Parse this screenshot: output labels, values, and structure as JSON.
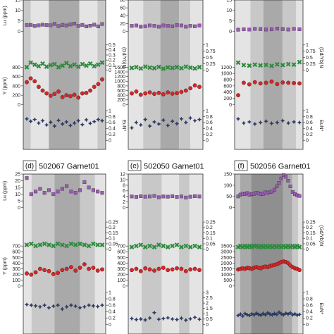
{
  "colors": {
    "lu": "#9b59b6",
    "gd_yb": "#2e8b3e",
    "y": "#d62728",
    "eu": "#2c3e7a",
    "band_light": "#e4e4e4",
    "band_mid": "#c8c8c8",
    "band_dark": "#a9a9a9",
    "band_darkest": "#8f8f8f"
  },
  "chart_data": [
    {
      "type": "scatter",
      "label": "",
      "title": "",
      "bands": [
        "mid",
        "light",
        "dark",
        "light",
        "mid"
      ],
      "band_edges": [
        0.0,
        0.09,
        0.31,
        0.68,
        0.9,
        1.0
      ],
      "tracks": [
        {
          "key": "lu",
          "side": "left",
          "label": "Lu (ppm)",
          "ylim": [
            0,
            15
          ],
          "ticks": [
            "0",
            "5",
            "10",
            "15"
          ],
          "values": [
            3.0,
            3.1,
            2.6,
            2.9,
            3.2,
            3.0,
            2.9,
            3.6,
            2.5,
            3.1,
            2.8,
            3.3,
            3.7,
            2.6,
            3.1,
            2.4,
            2.7,
            3.2,
            2.4,
            3.5
          ]
        },
        {
          "key": "gd_yb",
          "side": "right",
          "label": "(Gd/Yb)N",
          "ylim": [
            0,
            0.5
          ],
          "ticks": [
            "0",
            "0.1",
            "0.2",
            "0.3",
            "0.4",
            "0.5"
          ],
          "values": [
            0.06,
            0.15,
            0.11,
            0.08,
            0.13,
            0.07,
            0.1,
            0.12,
            0.06,
            0.09,
            0.14,
            0.08,
            0.11,
            0.07,
            0.12,
            0.09,
            0.13,
            0.08,
            0.11,
            0.15
          ]
        },
        {
          "key": "y",
          "side": "left",
          "label": "Y (ppm)",
          "ylim": [
            0,
            800
          ],
          "ticks": [
            "0",
            "200",
            "400",
            "600",
            "800"
          ],
          "values": [
            480,
            560,
            500,
            380,
            300,
            240,
            190,
            230,
            280,
            160,
            200,
            180,
            210,
            150,
            240,
            250,
            300,
            380,
            440,
            540
          ]
        },
        {
          "key": "eu",
          "side": "right",
          "label": "EuN*",
          "ylim": [
            0,
            1
          ],
          "ticks": [
            "0",
            "0.2",
            "0.4",
            "0.6",
            "0.8",
            "1"
          ],
          "values": [
            0.72,
            0.64,
            0.7,
            0.58,
            0.66,
            0.52,
            0.61,
            0.48,
            0.67,
            0.55,
            0.62,
            0.5,
            0.58,
            0.66,
            0.53,
            0.69,
            0.57,
            0.63,
            0.7,
            0.66
          ]
        }
      ]
    },
    {
      "type": "scatter",
      "label": "",
      "title": "",
      "bands": [
        "light",
        "mid",
        "dark",
        "mid",
        "light"
      ],
      "band_edges": [
        0.0,
        0.2,
        0.43,
        0.68,
        0.83,
        1.0
      ],
      "tracks": [
        {
          "key": "lu",
          "side": "left",
          "label": "",
          "ylim": [
            0,
            80
          ],
          "ticks": [
            "0",
            "20",
            "40",
            "60",
            "80"
          ],
          "values": [
            14,
            15,
            12,
            13,
            15,
            14,
            12,
            15,
            14,
            13,
            16,
            15,
            12,
            14,
            13,
            15
          ]
        },
        {
          "key": "gd_yb",
          "side": "right",
          "label": "",
          "ylim": [
            0,
            1
          ],
          "ticks": [
            "0",
            "0.25",
            "0.5",
            "0.75",
            "1"
          ],
          "values": [
            0.09,
            0.12,
            0.07,
            0.14,
            0.1,
            0.08,
            0.13,
            0.06,
            0.11,
            0.09,
            0.12,
            0.08,
            0.14,
            0.1,
            0.07,
            0.12
          ]
        },
        {
          "key": "y",
          "side": "left",
          "label": "",
          "ylim": [
            0,
            1600
          ],
          "ticks": [
            "0",
            "200",
            "400",
            "600",
            "800",
            "1000",
            "1200",
            "1400",
            "1600"
          ],
          "values": [
            480,
            560,
            420,
            480,
            520,
            460,
            500,
            440,
            520,
            470,
            490,
            540,
            600,
            700,
            820,
            760
          ]
        },
        {
          "key": "eu",
          "side": "right",
          "label": "",
          "ylim": [
            0,
            1
          ],
          "ticks": [
            "0",
            "0.2",
            "0.4",
            "0.6",
            "0.8",
            "1"
          ],
          "values": [
            0.42,
            0.6,
            0.52,
            0.7,
            0.48,
            0.62,
            0.55,
            0.68,
            0.5,
            0.64,
            0.56,
            0.72,
            0.6,
            0.75,
            0.66,
            0.7
          ]
        }
      ]
    },
    {
      "type": "scatter",
      "label": "",
      "title": "",
      "bands": [
        "light",
        "mid",
        "dark",
        "mid",
        "light"
      ],
      "band_edges": [
        0.0,
        0.23,
        0.42,
        0.7,
        0.9,
        1.0
      ],
      "tracks": [
        {
          "key": "lu",
          "side": "left",
          "label": "",
          "ylim": [
            0,
            15
          ],
          "ticks": [
            "0",
            "5",
            "10",
            "15"
          ],
          "values": [
            0.8,
            1.0,
            0.9,
            1.2,
            1.1,
            0.9,
            1.0,
            1.3,
            1.1,
            0.9,
            1.2,
            1.0
          ]
        },
        {
          "key": "gd_yb",
          "side": "right",
          "label": "(Gd/Yb)N",
          "ylim": [
            0,
            1
          ],
          "ticks": [
            "0",
            "0.25",
            "0.5",
            "0.75",
            "1"
          ],
          "values": [
            0.3,
            0.2,
            0.18,
            0.22,
            0.19,
            0.21,
            0.17,
            0.23,
            0.2,
            0.24,
            0.22,
            0.32
          ]
        },
        {
          "key": "y",
          "side": "left",
          "label": "",
          "ylim": [
            0,
            1200
          ],
          "ticks": [
            "0",
            "200",
            "400",
            "600",
            "800",
            "1000",
            "1200"
          ],
          "values": [
            300,
            700,
            650,
            720,
            680,
            700,
            740,
            660,
            710,
            700,
            690,
            680
          ]
        },
        {
          "key": "eu",
          "side": "right",
          "label": "EuN*",
          "ylim": [
            0,
            1
          ],
          "ticks": [
            "0",
            "0.2",
            "0.4",
            "0.6",
            "0.8",
            "1"
          ],
          "values": [
            0.72,
            0.58,
            0.62,
            0.55,
            0.6,
            0.64,
            0.57,
            0.6,
            0.66,
            0.58,
            0.62,
            0.6
          ]
        }
      ]
    },
    {
      "type": "scatter",
      "label": "(d)",
      "title": "502067 Garnet01",
      "bands": [
        "light",
        "mid",
        "dark",
        "mid",
        "light"
      ],
      "band_edges": [
        0.0,
        0.1,
        0.38,
        0.69,
        0.87,
        1.0
      ],
      "tracks": [
        {
          "key": "lu",
          "side": "left",
          "label": "Lu (ppm)",
          "ylim": [
            0,
            25
          ],
          "ticks": [
            "0",
            "5",
            "10",
            "15",
            "20",
            "25"
          ],
          "values": [
            22,
            10,
            12,
            14,
            11,
            13,
            10,
            12,
            14,
            16,
            12,
            11,
            13,
            19,
            15,
            13,
            12,
            11
          ]
        },
        {
          "key": "gd_yb",
          "side": "right",
          "label": "",
          "ylim": [
            0,
            0.25
          ],
          "ticks": [
            "0",
            "0.05",
            "0.1",
            "0.15",
            "0.2",
            "0.25"
          ],
          "values": [
            0.04,
            0.05,
            0.03,
            0.04,
            0.05,
            0.04,
            0.03,
            0.05,
            0.04,
            0.03,
            0.05,
            0.04,
            0.05,
            0.04,
            0.03,
            0.05,
            0.04,
            0.04
          ]
        },
        {
          "key": "y",
          "side": "left",
          "label": "Y (ppm)",
          "ylim": [
            0,
            700
          ],
          "ticks": [
            "0",
            "100",
            "200",
            "300",
            "400",
            "500",
            "600",
            "700"
          ],
          "values": [
            220,
            200,
            240,
            300,
            280,
            260,
            210,
            230,
            280,
            300,
            330,
            270,
            320,
            380,
            300,
            320,
            270,
            290
          ]
        },
        {
          "key": "eu",
          "side": "right",
          "label": "",
          "ylim": [
            0,
            1
          ],
          "ticks": [
            "0",
            "0.2",
            "0.4",
            "0.6",
            "0.8",
            "1"
          ],
          "values": [
            0.62,
            0.6,
            0.58,
            0.55,
            0.6,
            0.52,
            0.57,
            0.6,
            0.48,
            0.55,
            0.6,
            0.57,
            0.52,
            0.55,
            0.6,
            0.58,
            0.56,
            0.6
          ]
        }
      ]
    },
    {
      "type": "scatter",
      "label": "(e)",
      "title": "502050 Garnet01",
      "bands": [
        "light",
        "mid",
        "light",
        "mid",
        "light"
      ],
      "band_edges": [
        0.0,
        0.18,
        0.45,
        0.68,
        0.82,
        1.0
      ],
      "tracks": [
        {
          "key": "lu",
          "side": "left",
          "label": "",
          "ylim": [
            0,
            12
          ],
          "ticks": [
            "0",
            "2",
            "4",
            "6",
            "8",
            "10",
            "12"
          ],
          "values": [
            4.0,
            3.8,
            4.1,
            3.9,
            4.0,
            4.2,
            3.7,
            4.0,
            3.9,
            4.1,
            3.8,
            4.0,
            3.6,
            3.9,
            4.1,
            4.0
          ]
        },
        {
          "key": "gd_yb",
          "side": "right",
          "label": "",
          "ylim": [
            0,
            0.25
          ],
          "ticks": [
            "0",
            "0.05",
            "0.1",
            "0.15",
            "0.2",
            "0.25"
          ],
          "values": [
            0.02,
            0.03,
            0.04,
            0.02,
            0.03,
            0.02,
            0.04,
            0.03,
            0.02,
            0.03,
            0.04,
            0.02,
            0.03,
            0.02,
            0.03,
            0.02
          ]
        },
        {
          "key": "y",
          "side": "left",
          "label": "",
          "ylim": [
            0,
            700
          ],
          "ticks": [
            "0",
            "100",
            "200",
            "300",
            "400",
            "500",
            "600",
            "700"
          ],
          "values": [
            280,
            300,
            260,
            310,
            290,
            270,
            300,
            320,
            280,
            290,
            310,
            300,
            260,
            290,
            300,
            280
          ]
        },
        {
          "key": "eu",
          "side": "right",
          "label": "",
          "ylim": [
            0,
            3
          ],
          "ticks": [
            "0",
            "0.5",
            "1",
            "1.5",
            "2",
            "2.5",
            "3"
          ],
          "values": [
            0.55,
            0.45,
            0.5,
            0.42,
            0.6,
            1.1,
            0.48,
            0.55,
            0.62,
            0.5,
            0.45,
            0.58,
            0.4,
            0.52,
            0.66,
            0.48
          ]
        }
      ]
    },
    {
      "type": "scatter",
      "label": "(f)",
      "title": "502056 Garnet01",
      "bands": [
        "mid",
        "dark",
        "darkest",
        "dark",
        "mid",
        "light"
      ],
      "band_edges": [
        0.0,
        0.08,
        0.24,
        0.71,
        0.84,
        0.93,
        1.0
      ],
      "tracks": [
        {
          "key": "lu",
          "side": "left",
          "label": "",
          "ylim": [
            0,
            150
          ],
          "ticks": [
            "0",
            "50",
            "100",
            "150"
          ],
          "values": [
            50,
            58,
            62,
            60,
            65,
            58,
            60,
            62,
            66,
            64,
            60,
            62,
            68,
            66,
            70,
            72,
            80,
            95,
            110,
            130,
            145,
            138,
            120,
            95,
            70,
            60,
            55,
            52
          ]
        },
        {
          "key": "gd_yb",
          "side": "right",
          "label": "(Gd/Yb)N",
          "ylim": [
            0,
            0.25
          ],
          "ticks": [
            "0",
            "0.05",
            "0.1",
            "0.15",
            "0.2",
            "0.25"
          ],
          "values": [
            0.02,
            0.03,
            0.02,
            0.03,
            0.02,
            0.03,
            0.02,
            0.03,
            0.03,
            0.02,
            0.03,
            0.02,
            0.03,
            0.02,
            0.03,
            0.02,
            0.03,
            0.02,
            0.03,
            0.02,
            0.03,
            0.02,
            0.03,
            0.02,
            0.03,
            0.02,
            0.03,
            0.02
          ]
        },
        {
          "key": "y",
          "side": "left",
          "label": "",
          "ylim": [
            0,
            3500
          ],
          "ticks": [
            "0",
            "500",
            "1000",
            "1500",
            "2000",
            "2500",
            "3000",
            "3500"
          ],
          "values": [
            1450,
            1500,
            1550,
            1500,
            1600,
            1550,
            1500,
            1600,
            1650,
            1600,
            1550,
            1650,
            1700,
            1650,
            1750,
            1800,
            1850,
            1900,
            2000,
            2100,
            2150,
            2100,
            2000,
            1800,
            1650,
            1550,
            1500,
            1400
          ]
        },
        {
          "key": "eu",
          "side": "right",
          "label": "EuN*",
          "ylim": [
            0,
            1
          ],
          "ticks": [
            "0",
            "0.2",
            "0.4",
            "0.6",
            "0.8",
            "1"
          ],
          "values": [
            0.28,
            0.32,
            0.26,
            0.34,
            0.3,
            0.28,
            0.33,
            0.3,
            0.35,
            0.31,
            0.29,
            0.34,
            0.3,
            0.36,
            0.32,
            0.3,
            0.34,
            0.31,
            0.38,
            0.33,
            0.3,
            0.35,
            0.32,
            0.36,
            0.3,
            0.33,
            0.29,
            0.31
          ]
        }
      ]
    }
  ]
}
